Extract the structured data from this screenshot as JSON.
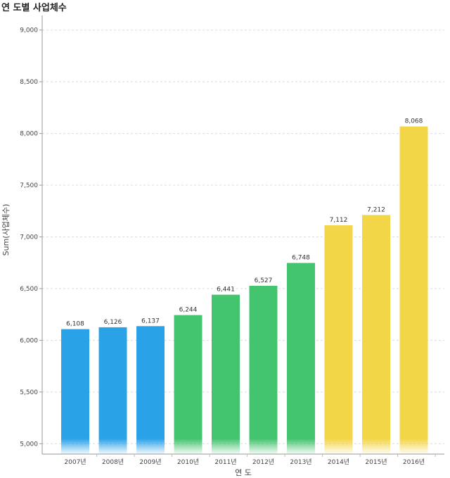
{
  "title": "연 도별 사업체수",
  "chart_data": {
    "type": "bar",
    "title": "연 도별 사업체수",
    "xlabel": "연 도",
    "ylabel": "Sum(사업체수)",
    "categories": [
      "2007년",
      "2008년",
      "2009년",
      "2010년",
      "2011년",
      "2012년",
      "2013년",
      "2014년",
      "2015년",
      "2016년"
    ],
    "values": [
      6108,
      6126,
      6137,
      6244,
      6441,
      6527,
      6748,
      7112,
      7212,
      8068
    ],
    "value_labels": [
      "6,108",
      "6,126",
      "6,137",
      "6,244",
      "6,441",
      "6,527",
      "6,748",
      "7,112",
      "7,212",
      "8,068"
    ],
    "ylim": [
      4900,
      9100
    ],
    "yticks": [
      5000,
      5500,
      6000,
      6500,
      7000,
      7500,
      8000,
      8500,
      9000
    ],
    "ytick_labels": [
      "5,000",
      "5,500",
      "6,000",
      "6,500",
      "7,000",
      "7,500",
      "8,000",
      "8,500",
      "9,000"
    ],
    "bar_colors": [
      "#29a2e8",
      "#29a2e8",
      "#29a2e8",
      "#43c46f",
      "#43c46f",
      "#43c46f",
      "#43c46f",
      "#f3d548",
      "#f3d548",
      "#f3d548"
    ],
    "grid": true
  }
}
